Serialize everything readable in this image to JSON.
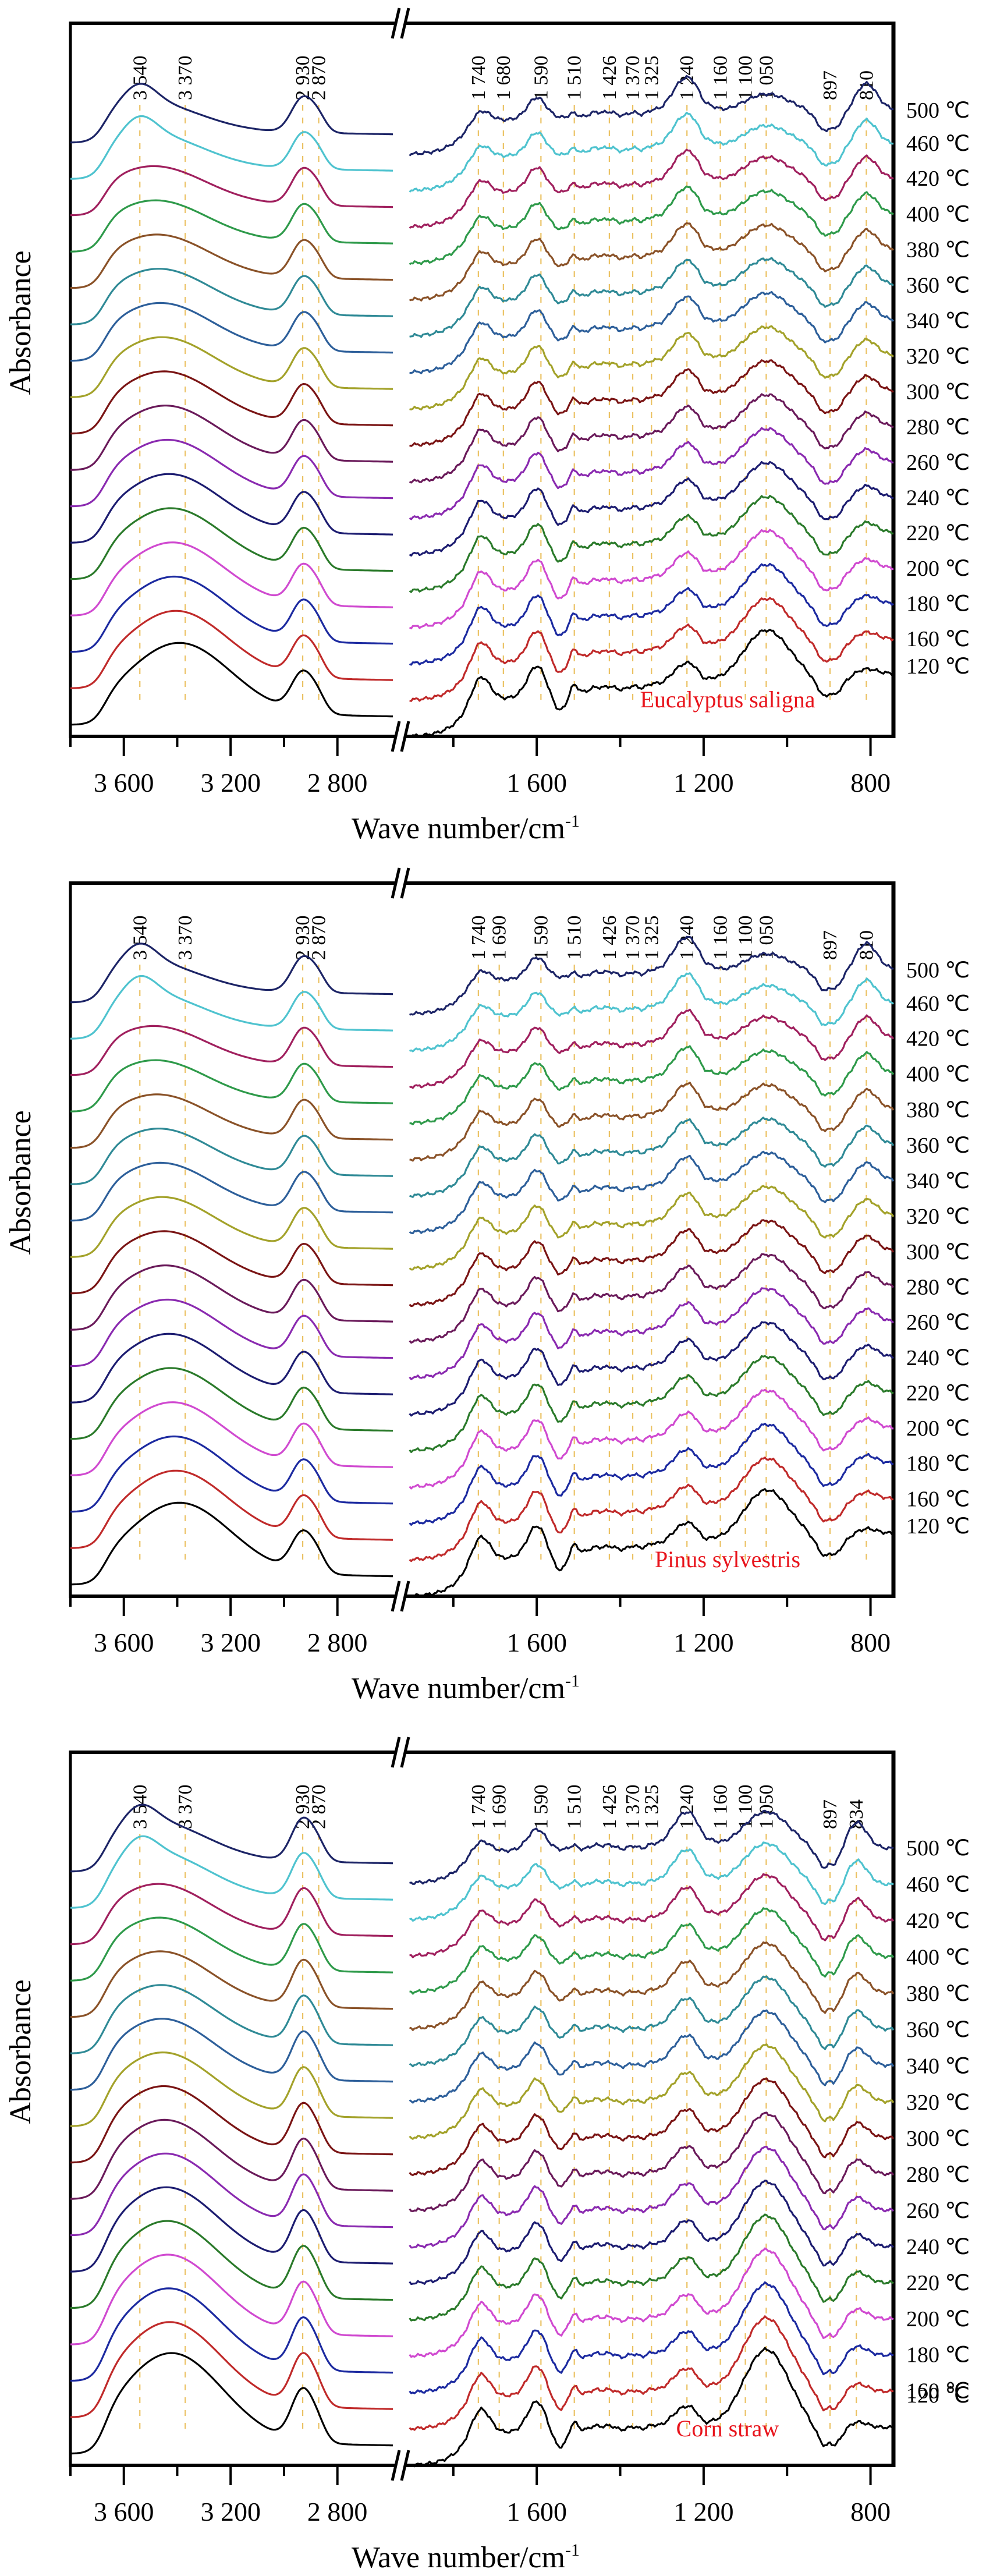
{
  "figure": {
    "xlabel": "Wave number/cm",
    "xlabel_sup": "-1",
    "ylabel": "Absorbance",
    "temperature_unit": "℃",
    "guide_line_color": "#e8b84a",
    "species_label_color": "#e8141c",
    "series_colors": {
      "500": "#1c2466",
      "460": "#4fc3cf",
      "420": "#a0205e",
      "400": "#2e9a4a",
      "380": "#8a5228",
      "360": "#2f8a96",
      "340": "#2d5f9a",
      "320": "#a3a22a",
      "300": "#7a1414",
      "280": "#6a1a5a",
      "260": "#8a2ab0",
      "240": "#1c1c70",
      "220": "#2a7a2a",
      "200": "#d04ad0",
      "180": "#1c2aa0",
      "160": "#c02a2a",
      "120": "#000000"
    }
  },
  "chart_data": [
    {
      "type": "line",
      "title": "Eucalyptus saligna",
      "xlabel": "Wave number/cm-1",
      "ylabel": "Absorbance",
      "x_axis_break": true,
      "x_segments": [
        {
          "range": [
            3800,
            2590
          ],
          "ticks": [
            "3 600",
            "3 200",
            "2 800"
          ],
          "tick_values": [
            3600,
            3200,
            2800
          ],
          "minor_ticks": [
            3800,
            3400,
            3000
          ]
        },
        {
          "range": [
            1910,
            745
          ],
          "ticks": [
            "1 600",
            "1 200",
            "800"
          ],
          "tick_values": [
            1600,
            1200,
            800
          ],
          "minor_ticks": [
            1800,
            1400,
            1000
          ]
        }
      ],
      "peak_lines": [
        {
          "label": "3 540",
          "x": 3540
        },
        {
          "label": "3 370",
          "x": 3370
        },
        {
          "label": "2 930",
          "x": 2930
        },
        {
          "label": "2 870",
          "x": 2870
        },
        {
          "label": "1 740",
          "x": 1740
        },
        {
          "label": "1 680",
          "x": 1680
        },
        {
          "label": "1 590",
          "x": 1590
        },
        {
          "label": "1 510",
          "x": 1510
        },
        {
          "label": "1 426",
          "x": 1426
        },
        {
          "label": "1 370",
          "x": 1370
        },
        {
          "label": "1 325",
          "x": 1325
        },
        {
          "label": "1 240",
          "x": 1240
        },
        {
          "label": "1 160",
          "x": 1160
        },
        {
          "label": "1 100",
          "x": 1100
        },
        {
          "label": "1 050",
          "x": 1050
        },
        {
          "label": "897",
          "x": 897
        },
        {
          "label": "810",
          "x": 810
        }
      ],
      "series": [
        {
          "name": "500 ℃",
          "temp": "500",
          "offset": 16
        },
        {
          "name": "460 ℃",
          "temp": "460",
          "offset": 15
        },
        {
          "name": "420 ℃",
          "temp": "420",
          "offset": 14
        },
        {
          "name": "400 ℃",
          "temp": "400",
          "offset": 13
        },
        {
          "name": "380 ℃",
          "temp": "380",
          "offset": 12
        },
        {
          "name": "360 ℃",
          "temp": "360",
          "offset": 11
        },
        {
          "name": "340 ℃",
          "temp": "340",
          "offset": 10
        },
        {
          "name": "320 ℃",
          "temp": "320",
          "offset": 9
        },
        {
          "name": "300 ℃",
          "temp": "300",
          "offset": 8
        },
        {
          "name": "280 ℃",
          "temp": "280",
          "offset": 7
        },
        {
          "name": "260 ℃",
          "temp": "260",
          "offset": 6
        },
        {
          "name": "240 ℃",
          "temp": "240",
          "offset": 5
        },
        {
          "name": "220 ℃",
          "temp": "220",
          "offset": 4
        },
        {
          "name": "200 ℃",
          "temp": "200",
          "offset": 3
        },
        {
          "name": "180 ℃",
          "temp": "180",
          "offset": 2
        },
        {
          "name": "160 ℃",
          "temp": "160",
          "offset": 1
        },
        {
          "name": "120 ℃",
          "temp": "120",
          "offset": 0
        }
      ],
      "annotation": "Eucalyptus saligna",
      "grid": false,
      "legend": "right (temperature labels beside each curve)"
    },
    {
      "type": "line",
      "title": "Pinus sylvestris",
      "xlabel": "Wave number/cm-1",
      "ylabel": "Absorbance",
      "x_axis_break": true,
      "x_segments": [
        {
          "range": [
            3800,
            2590
          ],
          "ticks": [
            "3 600",
            "3 200",
            "2 800"
          ],
          "tick_values": [
            3600,
            3200,
            2800
          ],
          "minor_ticks": [
            3800,
            3400,
            3000
          ]
        },
        {
          "range": [
            1910,
            745
          ],
          "ticks": [
            "1 600",
            "1 200",
            "800"
          ],
          "tick_values": [
            1600,
            1200,
            800
          ],
          "minor_ticks": [
            1800,
            1400,
            1000
          ]
        }
      ],
      "peak_lines": [
        {
          "label": "3 540",
          "x": 3540
        },
        {
          "label": "3 370",
          "x": 3370
        },
        {
          "label": "2 930",
          "x": 2930
        },
        {
          "label": "2 870",
          "x": 2870
        },
        {
          "label": "1 740",
          "x": 1740
        },
        {
          "label": "1 690",
          "x": 1690
        },
        {
          "label": "1 590",
          "x": 1590
        },
        {
          "label": "1 510",
          "x": 1510
        },
        {
          "label": "1 426",
          "x": 1426
        },
        {
          "label": "1 370",
          "x": 1370
        },
        {
          "label": "1 325",
          "x": 1325
        },
        {
          "label": "1 240",
          "x": 1240
        },
        {
          "label": "1 160",
          "x": 1160
        },
        {
          "label": "1 100",
          "x": 1100
        },
        {
          "label": "1 050",
          "x": 1050
        },
        {
          "label": "897",
          "x": 897
        },
        {
          "label": "810",
          "x": 810
        }
      ],
      "series": [
        {
          "name": "500 ℃",
          "temp": "500",
          "offset": 16
        },
        {
          "name": "460 ℃",
          "temp": "460",
          "offset": 15
        },
        {
          "name": "420 ℃",
          "temp": "420",
          "offset": 14
        },
        {
          "name": "400 ℃",
          "temp": "400",
          "offset": 13
        },
        {
          "name": "380 ℃",
          "temp": "380",
          "offset": 12
        },
        {
          "name": "360 ℃",
          "temp": "360",
          "offset": 11
        },
        {
          "name": "340 ℃",
          "temp": "340",
          "offset": 10
        },
        {
          "name": "320 ℃",
          "temp": "320",
          "offset": 9
        },
        {
          "name": "300 ℃",
          "temp": "300",
          "offset": 8
        },
        {
          "name": "280 ℃",
          "temp": "280",
          "offset": 7
        },
        {
          "name": "260 ℃",
          "temp": "260",
          "offset": 6
        },
        {
          "name": "240 ℃",
          "temp": "240",
          "offset": 5
        },
        {
          "name": "220 ℃",
          "temp": "220",
          "offset": 4
        },
        {
          "name": "200 ℃",
          "temp": "200",
          "offset": 3
        },
        {
          "name": "180 ℃",
          "temp": "180",
          "offset": 2
        },
        {
          "name": "160 ℃",
          "temp": "160",
          "offset": 1
        },
        {
          "name": "120 ℃",
          "temp": "120",
          "offset": 0
        }
      ],
      "annotation": "Pinus sylvestris",
      "grid": false,
      "legend": "right (temperature labels beside each curve)"
    },
    {
      "type": "line",
      "title": "Corn straw",
      "xlabel": "Wave number/cm-1",
      "ylabel": "Absorbance",
      "x_axis_break": true,
      "x_segments": [
        {
          "range": [
            3800,
            2590
          ],
          "ticks": [
            "3 600",
            "3 200",
            "2 800"
          ],
          "tick_values": [
            3600,
            3200,
            2800
          ],
          "minor_ticks": [
            3800,
            3400,
            3000
          ]
        },
        {
          "range": [
            1910,
            745
          ],
          "ticks": [
            "1 600",
            "1 200",
            "800"
          ],
          "tick_values": [
            1600,
            1200,
            800
          ],
          "minor_ticks": [
            1800,
            1400,
            1000
          ]
        }
      ],
      "peak_lines": [
        {
          "label": "3 540",
          "x": 3540
        },
        {
          "label": "3 370",
          "x": 3370
        },
        {
          "label": "2 930",
          "x": 2930
        },
        {
          "label": "2 870",
          "x": 2870
        },
        {
          "label": "1 740",
          "x": 1740
        },
        {
          "label": "1 690",
          "x": 1690
        },
        {
          "label": "1 590",
          "x": 1590
        },
        {
          "label": "1 510",
          "x": 1510
        },
        {
          "label": "1 426",
          "x": 1426
        },
        {
          "label": "1 370",
          "x": 1370
        },
        {
          "label": "1 325",
          "x": 1325
        },
        {
          "label": "1 240",
          "x": 1240
        },
        {
          "label": "1 160",
          "x": 1160
        },
        {
          "label": "1 100",
          "x": 1100
        },
        {
          "label": "1 050",
          "x": 1050
        },
        {
          "label": "897",
          "x": 897
        },
        {
          "label": "834",
          "x": 834
        }
      ],
      "series": [
        {
          "name": "500 ℃",
          "temp": "500",
          "offset": 16
        },
        {
          "name": "460 ℃",
          "temp": "460",
          "offset": 15
        },
        {
          "name": "420 ℃",
          "temp": "420",
          "offset": 14
        },
        {
          "name": "400 ℃",
          "temp": "400",
          "offset": 13
        },
        {
          "name": "380 ℃",
          "temp": "380",
          "offset": 12
        },
        {
          "name": "360 ℃",
          "temp": "360",
          "offset": 11
        },
        {
          "name": "340 ℃",
          "temp": "340",
          "offset": 10
        },
        {
          "name": "320 ℃",
          "temp": "320",
          "offset": 9
        },
        {
          "name": "300 ℃",
          "temp": "300",
          "offset": 8
        },
        {
          "name": "280 ℃",
          "temp": "280",
          "offset": 7
        },
        {
          "name": "260 ℃",
          "temp": "260",
          "offset": 6
        },
        {
          "name": "240 ℃",
          "temp": "240",
          "offset": 5
        },
        {
          "name": "220 ℃",
          "temp": "220",
          "offset": 4
        },
        {
          "name": "200 ℃",
          "temp": "200",
          "offset": 3
        },
        {
          "name": "180 ℃",
          "temp": "180",
          "offset": 2
        },
        {
          "name": "160 ℃",
          "temp": "160",
          "offset": 1
        },
        {
          "name": "120 ℃",
          "temp": "120",
          "offset": 0
        }
      ],
      "annotation": "Corn straw",
      "grid": false,
      "legend": "right (temperature labels beside each curve)"
    }
  ]
}
